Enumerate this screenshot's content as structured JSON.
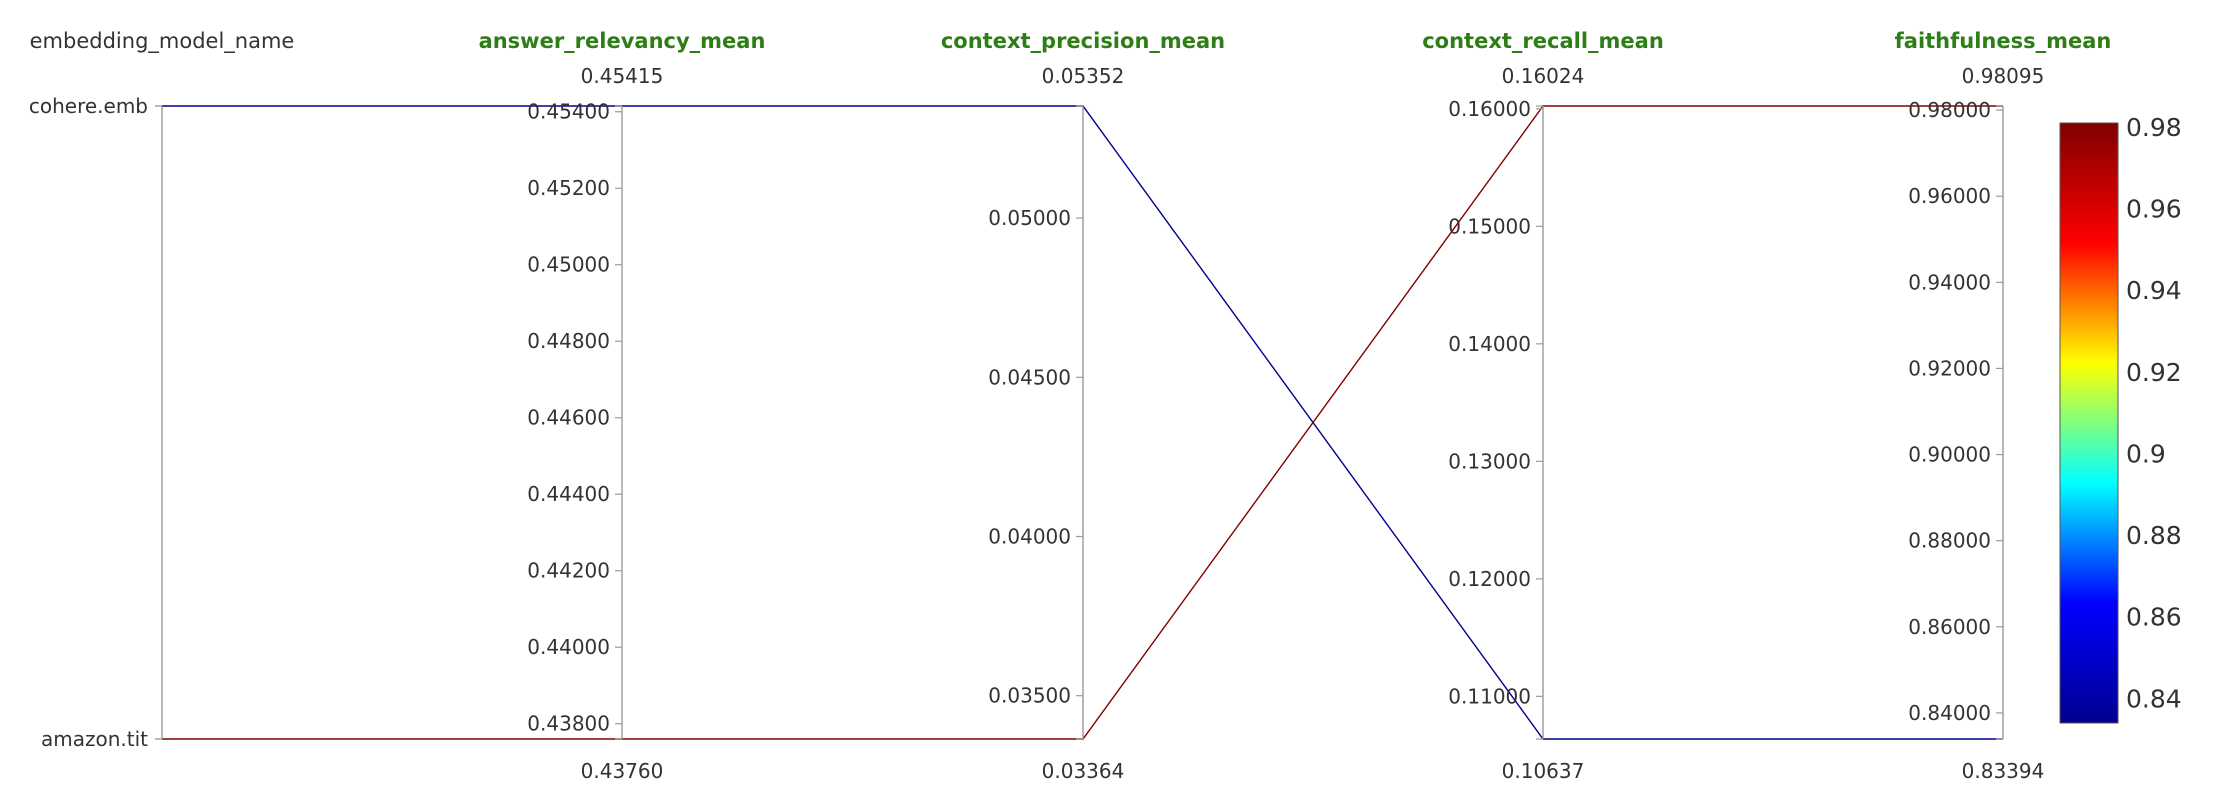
{
  "chart_data": {
    "type": "parallel_coordinates",
    "colorscale_name": "Jet",
    "colorscale": [
      "#00008f",
      "#0000ff",
      "#00ffff",
      "#ffff00",
      "#ff0000",
      "#800000"
    ],
    "color_range": [
      0.83394,
      0.98095
    ],
    "colorbar_ticks": [
      "0.98",
      "0.96",
      "0.94",
      "0.92",
      "0.9",
      "0.88",
      "0.86",
      "0.84"
    ],
    "colorbar_tick_values": [
      0.98,
      0.96,
      0.94,
      0.92,
      0.9,
      0.88,
      0.86,
      0.84
    ],
    "dimensions": [
      {
        "label": "embedding_model_name",
        "kind": "categorical",
        "categories": [
          "cohere.emb",
          "amazon.tit"
        ],
        "title_style": "plain"
      },
      {
        "label": "answer_relevancy_mean",
        "kind": "numeric",
        "range": [
          0.4376,
          0.45415
        ],
        "range_labels": {
          "max": "0.45415",
          "min": "0.43760"
        },
        "ticks": [
          "0.45400",
          "0.45200",
          "0.45000",
          "0.44800",
          "0.44600",
          "0.44400",
          "0.44200",
          "0.44000",
          "0.43800"
        ],
        "tick_values": [
          0.454,
          0.452,
          0.45,
          0.448,
          0.446,
          0.444,
          0.442,
          0.44,
          0.438
        ]
      },
      {
        "label": "context_precision_mean",
        "kind": "numeric",
        "range": [
          0.03364,
          0.05352
        ],
        "range_labels": {
          "max": "0.05352",
          "min": "0.03364"
        },
        "ticks": [
          "0.05000",
          "0.04500",
          "0.04000",
          "0.03500"
        ],
        "tick_values": [
          0.05,
          0.045,
          0.04,
          0.035
        ]
      },
      {
        "label": "context_recall_mean",
        "kind": "numeric",
        "range": [
          0.10637,
          0.16024
        ],
        "range_labels": {
          "max": "0.16024",
          "min": "0.10637"
        },
        "ticks": [
          "0.16000",
          "0.15000",
          "0.14000",
          "0.13000",
          "0.12000",
          "0.11000"
        ],
        "tick_values": [
          0.16,
          0.15,
          0.14,
          0.13,
          0.12,
          0.11
        ]
      },
      {
        "label": "faithfulness_mean",
        "kind": "numeric",
        "range": [
          0.83394,
          0.98095
        ],
        "range_labels": {
          "max": "0.98095",
          "min": "0.83394"
        },
        "ticks": [
          "0.98000",
          "0.96000",
          "0.94000",
          "0.92000",
          "0.90000",
          "0.88000",
          "0.86000",
          "0.84000"
        ],
        "tick_values": [
          0.98,
          0.96,
          0.94,
          0.92,
          0.9,
          0.88,
          0.86,
          0.84
        ]
      }
    ],
    "records": [
      {
        "embedding_model_name": "cohere.emb",
        "values": [
          0.45415,
          0.05352,
          0.10637,
          0.83394
        ],
        "color_value": 0.83394
      },
      {
        "embedding_model_name": "amazon.tit",
        "values": [
          0.4376,
          0.03364,
          0.16024,
          0.98095
        ],
        "color_value": 0.98095
      }
    ]
  }
}
